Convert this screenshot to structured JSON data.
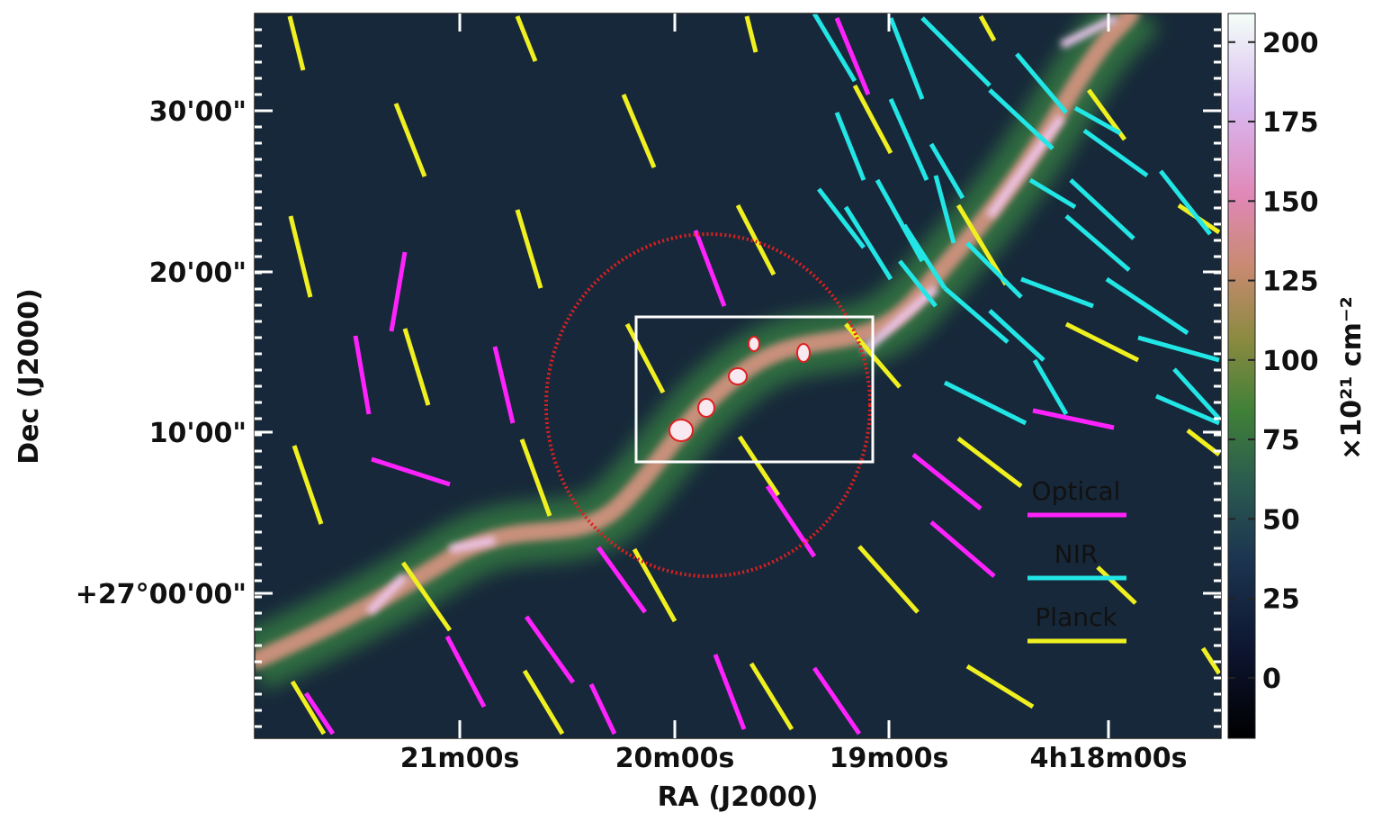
{
  "figure": {
    "x_axis": {
      "label": "RA (J2000)",
      "ticks": [
        "21m00s",
        "20m00s",
        "19m00s",
        "4h18m00s"
      ]
    },
    "y_axis": {
      "label": "Dec (J2000)",
      "ticks": [
        "30'00\"",
        "20'00\"",
        "10'00\"",
        "+27°00'00\""
      ]
    },
    "colorbar": {
      "label": "×10²¹ cm⁻²",
      "ticks": [
        200,
        175,
        150,
        125,
        100,
        75,
        50,
        25,
        0
      ],
      "lim": [
        -19,
        209
      ]
    },
    "legend": [
      {
        "name": "Optical",
        "color": "#ff22ff"
      },
      {
        "name": "NIR",
        "color": "#22e6e6"
      },
      {
        "name": "Planck",
        "color": "#f0f020"
      }
    ]
  }
}
